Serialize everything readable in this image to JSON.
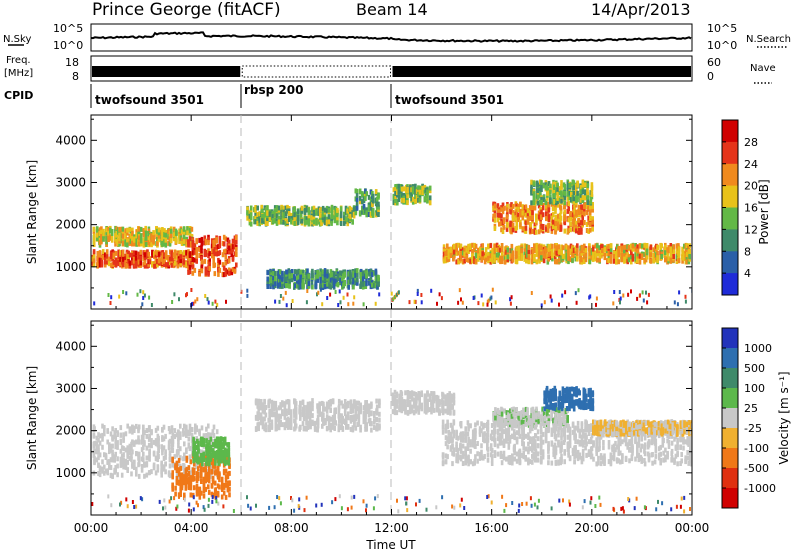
{
  "header": {
    "site": "Prince George (fitACF)",
    "beam": "Beam 14",
    "date": "14/Apr/2013"
  },
  "noise_panel": {
    "left_label": "N.Sky",
    "left_ticks": [
      "10^5",
      "10^0"
    ],
    "right_label": "N.Search",
    "right_ticks": [
      "10^5",
      "10^0"
    ]
  },
  "freq_panel": {
    "left_label_1": "Freq.",
    "left_label_2": "[MHz]",
    "left_ticks": [
      "18",
      "8"
    ],
    "right_label": "Nave",
    "right_ticks": [
      "60",
      "0"
    ]
  },
  "cpid": {
    "label": "CPID",
    "modes": [
      {
        "name": "twofsound 3501",
        "start": "00:00",
        "end": "06:00"
      },
      {
        "name": "rbsp 200",
        "start": "06:00",
        "end": "12:00"
      },
      {
        "name": "twofsound 3501",
        "start": "12:00",
        "end": "24:00"
      }
    ]
  },
  "x_axis": {
    "label": "Time UT",
    "ticks": [
      "00:00",
      "04:00",
      "08:00",
      "12:00",
      "16:00",
      "20:00",
      "00:00"
    ]
  },
  "y_axis": {
    "label": "Slant Range [km]",
    "ticks": [
      "1000",
      "2000",
      "3000",
      "4000"
    ]
  },
  "power_colorbar": {
    "label": "Power [dB]",
    "ticks": [
      "4",
      "8",
      "12",
      "16",
      "20",
      "24",
      "28"
    ],
    "colors": [
      "#1f2bd8",
      "#2a5fa8",
      "#3f8a6a",
      "#63b846",
      "#e8c21a",
      "#f08a1e",
      "#e5341a",
      "#d00000"
    ]
  },
  "velocity_colorbar": {
    "label": "Velocity [m s⁻¹]",
    "ticks": [
      "1000",
      "500",
      "100",
      "25",
      "-25",
      "-100",
      "-500",
      "-1000"
    ],
    "colors": [
      "#2233bb",
      "#2e6fb0",
      "#3f8a6a",
      "#5cb84b",
      "#c8c8c8",
      "#f0b030",
      "#f07818",
      "#e03010",
      "#d00000"
    ]
  },
  "chart_data": [
    {
      "type": "heatmap",
      "title": "Power",
      "xlabel": "Time UT",
      "ylabel": "Slant Range [km]",
      "xlim": [
        "00:00",
        "24:00"
      ],
      "ylim": [
        0,
        4600
      ],
      "colorbar": {
        "label": "Power [dB]",
        "range": [
          0,
          32
        ]
      },
      "blobs": [
        {
          "t": [
            0.0,
            4.0
          ],
          "r": [
            1000,
            1350
          ],
          "value": 24
        },
        {
          "t": [
            0.0,
            4.0
          ],
          "r": [
            1500,
            1900
          ],
          "value": 18
        },
        {
          "t": [
            3.8,
            5.8
          ],
          "r": [
            800,
            1700
          ],
          "value": 26
        },
        {
          "t": [
            6.2,
            10.5
          ],
          "r": [
            2000,
            2400
          ],
          "value": 14
        },
        {
          "t": [
            7.0,
            11.5
          ],
          "r": [
            500,
            900
          ],
          "value": 10
        },
        {
          "t": [
            10.5,
            11.5
          ],
          "r": [
            2200,
            2800
          ],
          "value": 12
        },
        {
          "t": [
            12.0,
            13.5
          ],
          "r": [
            2500,
            2900
          ],
          "value": 14
        },
        {
          "t": [
            14.0,
            24.0
          ],
          "r": [
            1100,
            1500
          ],
          "value": 20
        },
        {
          "t": [
            16.0,
            20.0
          ],
          "r": [
            1800,
            2500
          ],
          "value": 22
        },
        {
          "t": [
            17.5,
            20.0
          ],
          "r": [
            2500,
            3000
          ],
          "value": 14
        }
      ]
    },
    {
      "type": "heatmap",
      "title": "Velocity",
      "xlabel": "Time UT",
      "ylabel": "Slant Range [km]",
      "xlim": [
        "00:00",
        "24:00"
      ],
      "ylim": [
        0,
        4600
      ],
      "colorbar": {
        "label": "Velocity [m s⁻¹]",
        "range": [
          -1000,
          1000
        ]
      },
      "blobs": [
        {
          "t": [
            0.0,
            5.0
          ],
          "r": [
            900,
            2100
          ],
          "value": 0
        },
        {
          "t": [
            3.2,
            5.5
          ],
          "r": [
            400,
            1400
          ],
          "value": -400
        },
        {
          "t": [
            4.0,
            5.5
          ],
          "r": [
            1200,
            1800
          ],
          "value": 200
        },
        {
          "t": [
            6.5,
            11.5
          ],
          "r": [
            2000,
            2700
          ],
          "value": 0
        },
        {
          "t": [
            12.0,
            14.5
          ],
          "r": [
            2400,
            2900
          ],
          "value": 0
        },
        {
          "t": [
            16.0,
            19.0
          ],
          "r": [
            2100,
            2500
          ],
          "value": 80
        },
        {
          "t": [
            18.0,
            20.0
          ],
          "r": [
            2500,
            3000
          ],
          "value": 700
        },
        {
          "t": [
            14.0,
            24.0
          ],
          "r": [
            1200,
            2200
          ],
          "value": 0
        },
        {
          "t": [
            20.0,
            24.0
          ],
          "r": [
            1900,
            2200
          ],
          "value": -120
        }
      ]
    }
  ]
}
